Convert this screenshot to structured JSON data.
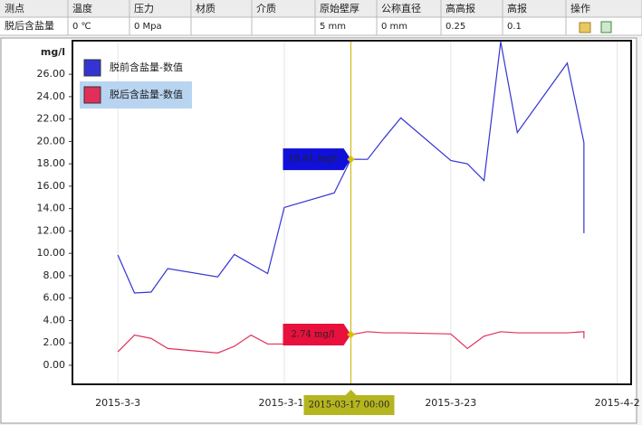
{
  "table": {
    "header": [
      "测点",
      "温度",
      "压力",
      "材质",
      "介质",
      "原始壁厚",
      "公称直径",
      "高高报",
      "高报",
      "操作"
    ],
    "rows": [
      [
        "脱后含盐量",
        "0 ℃",
        "0 Mpa",
        null,
        null,
        "5 mm",
        "0 mm",
        "0.25",
        "0.1",
        null
      ]
    ]
  },
  "chart_data": {
    "type": "line",
    "y_unit": "mg/l",
    "xlim": [
      "2015-2-28",
      "2015-4-3"
    ],
    "xticks": [
      "2015-3-3",
      "2015-3-13",
      "2015-3-23",
      "2015-4-2"
    ],
    "ylim": [
      -1.7,
      29
    ],
    "yticks": [
      {
        "value": 0,
        "label": "0.00"
      },
      {
        "value": 2,
        "label": "2.00"
      },
      {
        "value": 4,
        "label": "4.00"
      },
      {
        "value": 6,
        "label": "6.00"
      },
      {
        "value": 8,
        "label": "8.00"
      },
      {
        "value": 10,
        "label": "10.00"
      },
      {
        "value": 12,
        "label": "12.00"
      },
      {
        "value": 14,
        "label": "14.00"
      },
      {
        "value": 16,
        "label": "16.00"
      },
      {
        "value": 18,
        "label": "18.00"
      },
      {
        "value": 20,
        "label": "20.00"
      },
      {
        "value": 22,
        "label": "22.00"
      },
      {
        "value": 24,
        "label": "24.00"
      },
      {
        "value": 26,
        "label": "26.00"
      }
    ],
    "grid": "x",
    "series": [
      {
        "name": "脱前含盐量-数值",
        "color": "#3434d4",
        "x": [
          "2015-3-3",
          "2015-3-4",
          "2015-3-5",
          "2015-3-6",
          "2015-3-9",
          "2015-3-10",
          "2015-3-12",
          "2015-3-13",
          "2015-3-16",
          "2015-3-17",
          "2015-3-18",
          "2015-3-19",
          "2015-3-20",
          "2015-3-23",
          "2015-3-24",
          "2015-3-25",
          "2015-3-26",
          "2015-3-27",
          "2015-3-30",
          "2015-3-31",
          "2015-3-31"
        ],
        "values": [
          9.85,
          6.46,
          6.54,
          8.64,
          7.9,
          9.9,
          8.2,
          14.1,
          15.4,
          18.41,
          18.4,
          20.3,
          22.1,
          18.3,
          18.0,
          16.5,
          28.9,
          20.8,
          27.0,
          19.9,
          11.8
        ]
      },
      {
        "name": "脱后含盐量-数值",
        "color": "#e0305a",
        "x": [
          "2015-3-3",
          "2015-3-4",
          "2015-3-5",
          "2015-3-6",
          "2015-3-9",
          "2015-3-10",
          "2015-3-11",
          "2015-3-12",
          "2015-3-13",
          "2015-3-16",
          "2015-3-17",
          "2015-3-18",
          "2015-3-19",
          "2015-3-20",
          "2015-3-23",
          "2015-3-24",
          "2015-3-25",
          "2015-3-26",
          "2015-3-27",
          "2015-3-30",
          "2015-3-31",
          "2015-3-31"
        ],
        "values": [
          1.2,
          2.7,
          2.4,
          1.5,
          1.1,
          1.7,
          2.7,
          1.9,
          1.9,
          1.9,
          2.74,
          3.0,
          2.9,
          2.9,
          2.8,
          1.5,
          2.6,
          3.0,
          2.9,
          2.9,
          3.0,
          2.4
        ]
      }
    ],
    "crosshair": {
      "x": "2015-03-17 00:00",
      "values": [
        18.41,
        2.74
      ],
      "value_labels": [
        "18.41 mg/l",
        "2.74 mg/l"
      ]
    }
  }
}
